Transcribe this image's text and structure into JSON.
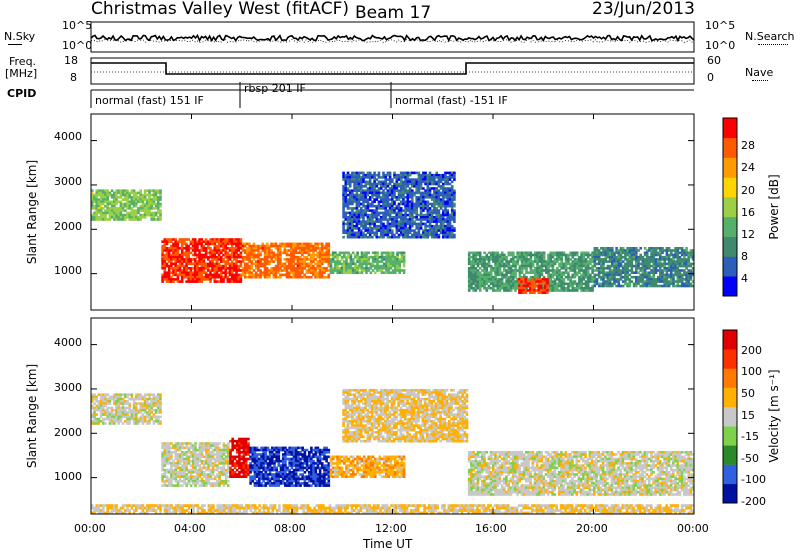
{
  "header": {
    "station": "Christmas Valley West (fitACF)",
    "beam": "Beam 17",
    "date": "23/Jun/2013"
  },
  "strips": {
    "nsky": {
      "label": "N.Sky",
      "ticks": [
        "10^5",
        "10^0"
      ]
    },
    "nsearch": {
      "label": "N.Search",
      "ticks": [
        "10^5",
        "10^0"
      ]
    },
    "freq": {
      "label_line1": "Freq.",
      "label_line2": "[MHz]",
      "ticks": [
        "18",
        "8"
      ]
    },
    "nave": {
      "label": "Nave",
      "ticks": [
        "60",
        "0"
      ]
    },
    "cpid": {
      "label": "CPID",
      "modes": [
        {
          "text": "normal (fast) 151 IF",
          "start": 0.0,
          "end": 6.0
        },
        {
          "text": "rbsp 201 IF",
          "start": 6.0,
          "end": 12.0
        },
        {
          "text": "normal (fast) -151 IF",
          "start": 12.0,
          "end": 24.0
        }
      ]
    }
  },
  "axes": {
    "ylabel": "Slant Range [km]",
    "xlabel": "Time UT",
    "xticks": [
      "00:00",
      "04:00",
      "08:00",
      "12:00",
      "16:00",
      "20:00",
      "00:00"
    ],
    "yticks": [
      "1000",
      "2000",
      "3000",
      "4000"
    ]
  },
  "colorbars": {
    "power": {
      "label": "Power [dB]",
      "ticks": [
        "28",
        "24",
        "20",
        "16",
        "12",
        "8",
        "4"
      ]
    },
    "velocity": {
      "label": "Velocity [m s⁻¹]",
      "ticks": [
        "200",
        "100",
        "50",
        "15",
        "-15",
        "-50",
        "-100",
        "-200"
      ]
    }
  },
  "colors": {
    "power_scale": [
      "#0000ff",
      "#2d5fb8",
      "#3f8a6e",
      "#54b06a",
      "#9ccf45",
      "#ffd400",
      "#ff9a00",
      "#ff5a00",
      "#ff0000"
    ],
    "velocity_scale": [
      "#0010a0",
      "#3060e0",
      "#2a8a2a",
      "#7fd04a",
      "#c8c8c8",
      "#ffb000",
      "#ff7a00",
      "#ff3000",
      "#e00000"
    ]
  },
  "chart_data": [
    {
      "type": "heatmap",
      "name": "power",
      "x_range_hours": [
        0,
        24
      ],
      "ylim": [
        180,
        4600
      ],
      "colorbar_range": [
        0,
        30
      ],
      "echo_regions": [
        {
          "t0": 0.0,
          "t1": 2.8,
          "r0": 2200,
          "r1": 2900,
          "value": 14
        },
        {
          "t0": 2.8,
          "t1": 6.0,
          "r0": 800,
          "r1": 1800,
          "value": 27
        },
        {
          "t0": 6.0,
          "t1": 9.5,
          "r0": 900,
          "r1": 1700,
          "value": 24
        },
        {
          "t0": 9.5,
          "t1": 12.5,
          "r0": 1000,
          "r1": 1500,
          "value": 12
        },
        {
          "t0": 10.0,
          "t1": 14.5,
          "r0": 1800,
          "r1": 3300,
          "value": 5
        },
        {
          "t0": 15.0,
          "t1": 20.0,
          "r0": 600,
          "r1": 1500,
          "value": 10
        },
        {
          "t0": 17.0,
          "t1": 18.2,
          "r0": 550,
          "r1": 900,
          "value": 26
        },
        {
          "t0": 20.0,
          "t1": 24.0,
          "r0": 700,
          "r1": 1600,
          "value": 8
        }
      ]
    },
    {
      "type": "heatmap",
      "name": "velocity",
      "x_range_hours": [
        0,
        24
      ],
      "ylim": [
        180,
        4600
      ],
      "colorbar_range": [
        -250,
        250
      ],
      "echo_regions": [
        {
          "t0": 0.0,
          "t1": 2.8,
          "r0": 2200,
          "r1": 2900,
          "value": 0
        },
        {
          "t0": 2.8,
          "t1": 5.5,
          "r0": 800,
          "r1": 1800,
          "value": 0
        },
        {
          "t0": 5.5,
          "t1": 6.3,
          "r0": 1000,
          "r1": 1900,
          "value": 220
        },
        {
          "t0": 6.3,
          "t1": 9.5,
          "r0": 800,
          "r1": 1700,
          "value": -200
        },
        {
          "t0": 9.5,
          "t1": 12.5,
          "r0": 1000,
          "r1": 1500,
          "value": 60
        },
        {
          "t0": 10.0,
          "t1": 15.0,
          "r0": 1800,
          "r1": 3000,
          "value": 30
        },
        {
          "t0": 15.0,
          "t1": 24.0,
          "r0": 600,
          "r1": 1600,
          "value": 0
        },
        {
          "t0": 0.0,
          "t1": 24.0,
          "r0": 180,
          "r1": 400,
          "value": 30
        }
      ]
    }
  ]
}
